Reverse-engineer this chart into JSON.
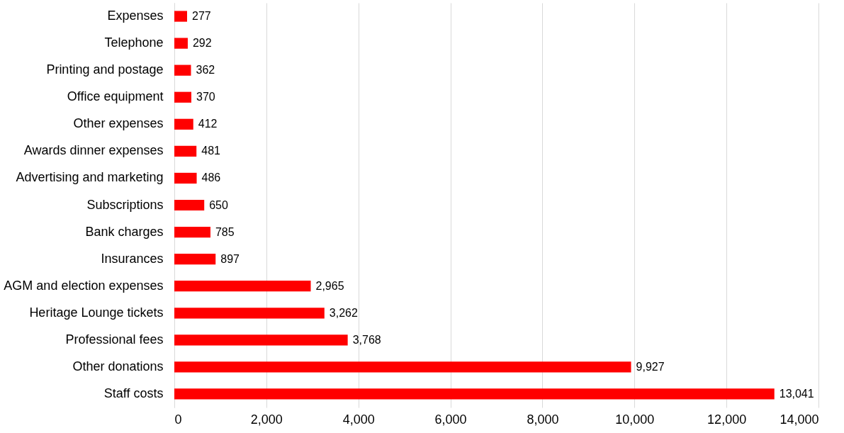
{
  "chart_data": {
    "type": "bar",
    "orientation": "horizontal",
    "categories": [
      "Expenses",
      "Telephone",
      "Printing and postage",
      "Office equipment",
      "Other expenses",
      "Awards dinner expenses",
      "Advertising and marketing",
      "Subscriptions",
      "Bank charges",
      "Insurances",
      "AGM and election expenses",
      "Heritage Lounge tickets",
      "Professional fees",
      "Other donations",
      "Staff costs"
    ],
    "values": [
      277,
      292,
      362,
      370,
      412,
      481,
      486,
      650,
      785,
      897,
      2965,
      3262,
      3768,
      9927,
      13041
    ],
    "color": "#ff0000",
    "xlim": [
      0,
      14000
    ],
    "xticks": [
      {
        "value": 0,
        "label": "0"
      },
      {
        "value": 2000,
        "label": "2,000"
      },
      {
        "value": 4000,
        "label": "4,000"
      },
      {
        "value": 6000,
        "label": "6,000"
      },
      {
        "value": 8000,
        "label": "8,000"
      },
      {
        "value": 10000,
        "label": "10,000"
      },
      {
        "value": 12000,
        "label": "12,000"
      },
      {
        "value": 14000,
        "label": "14,000"
      }
    ],
    "value_labels": [
      "277",
      "292",
      "362",
      "370",
      "412",
      "481",
      "486",
      "650",
      "785",
      "897",
      "2,965",
      "3,262",
      "3,768",
      "9,927",
      "13,041"
    ],
    "grid": "x"
  }
}
